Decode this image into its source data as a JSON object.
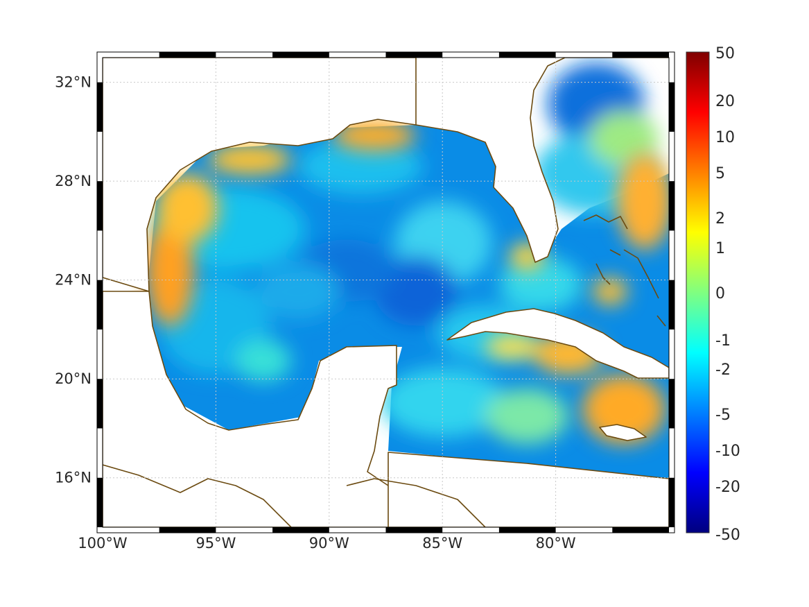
{
  "map": {
    "lon_range": [
      -100,
      -75
    ],
    "lat_range": [
      14,
      33
    ],
    "grid": true,
    "frame_style": "alternating black and white border",
    "data_colormap": "jet",
    "land_color": "#ffffff",
    "coastline_color": "#6b4a10"
  },
  "axes": {
    "x_ticks": [
      {
        "value": -100,
        "label": "100°W"
      },
      {
        "value": -95,
        "label": "95°W"
      },
      {
        "value": -90,
        "label": "90°W"
      },
      {
        "value": -85,
        "label": "85°W"
      },
      {
        "value": -80,
        "label": "80°W"
      }
    ],
    "y_ticks": [
      {
        "value": 32,
        "label": "32°N"
      },
      {
        "value": 28,
        "label": "28°N"
      },
      {
        "value": 24,
        "label": "24°N"
      },
      {
        "value": 20,
        "label": "20°N"
      },
      {
        "value": 16,
        "label": "16°N"
      }
    ]
  },
  "colorbar": {
    "scale": "symmetric nonlinear",
    "ticks": [
      "50",
      "20",
      "10",
      "5",
      "2",
      "1",
      "0",
      "-1",
      "-2",
      "-5",
      "-10",
      "-20",
      "-50"
    ],
    "colors": [
      "#7f0000",
      "#ff0000",
      "#ff8000",
      "#ffff00",
      "#80ff80",
      "#00ffff",
      "#0080ff",
      "#0000ff",
      "#00007f"
    ]
  }
}
